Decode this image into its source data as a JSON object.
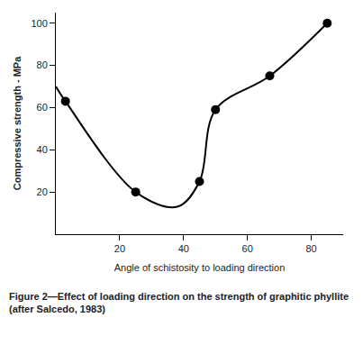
{
  "chart_data": {
    "type": "line",
    "x_label": "Angle of schistosity to loading direction",
    "y_label": "Compressive strength - MPa",
    "caption": "Figure 2—Effect of loading direction on the strength of graphitic phyllite (after Salcedo, 1983)",
    "series": [
      {
        "type": "line",
        "line_style": "smooth",
        "color": "#000000",
        "x": [
          0,
          3,
          25,
          38,
          45,
          50,
          67,
          85
        ],
        "values": [
          70,
          63,
          20,
          13,
          25,
          59,
          75,
          100
        ]
      },
      {
        "type": "scatter",
        "marker": "circle",
        "color": "#000000",
        "x": [
          3,
          25,
          45,
          50,
          67,
          85
        ],
        "values": [
          63,
          20,
          25,
          59,
          75,
          100
        ]
      }
    ],
    "xlim": [
      0,
      90
    ],
    "xticks": [
      20,
      40,
      60,
      80
    ],
    "ylim": [
      0,
      105
    ],
    "yticks": [
      20,
      40,
      60,
      80,
      100
    ],
    "grid": false
  }
}
